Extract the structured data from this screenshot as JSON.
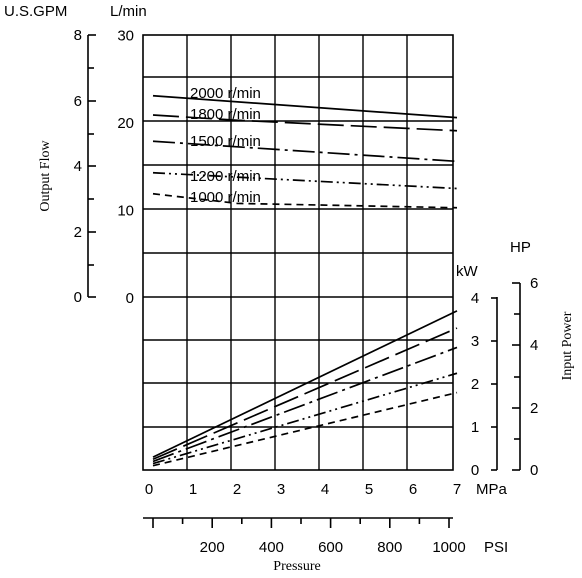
{
  "chart_data": {
    "type": "line",
    "xlabel": "Pressure",
    "x_axis_mpa": {
      "unit": "MPa",
      "ticks": [
        "0",
        "1",
        "2",
        "3",
        "4",
        "5",
        "6",
        "7"
      ],
      "range": [
        0,
        7
      ]
    },
    "x_axis_psi": {
      "unit": "PSI",
      "ticks": [
        "200",
        "400",
        "600",
        "800",
        "1000"
      ]
    },
    "flow_axis_l": {
      "unit": "L/min",
      "ticks": [
        "30",
        "20",
        "10",
        "0"
      ],
      "range": [
        0,
        30
      ]
    },
    "flow_axis_gpm": {
      "unit": "U.S.GPM",
      "ticks": [
        "8",
        "6",
        "4",
        "2",
        "0"
      ]
    },
    "flow_label": "Output Flow",
    "power_axis_kw": {
      "unit": "kW",
      "ticks": [
        "4",
        "3",
        "2",
        "1",
        "0"
      ],
      "range": [
        0,
        4
      ]
    },
    "power_axis_hp": {
      "unit": "HP",
      "ticks": [
        "6",
        "4",
        "2",
        "0"
      ]
    },
    "power_label": "Input Power",
    "flow_series": [
      {
        "name": "2000 r/min",
        "dash": "",
        "x": [
          0,
          7
        ],
        "y": [
          23.0,
          20.5
        ]
      },
      {
        "name": "1800 r/min",
        "dash": "26,7",
        "x": [
          0,
          2,
          7
        ],
        "y": [
          20.8,
          20.2,
          19.0
        ]
      },
      {
        "name": "1500 r/min",
        "dash": "22,5,3,5",
        "x": [
          0,
          7
        ],
        "y": [
          17.8,
          15.5
        ]
      },
      {
        "name": "1200 r/min",
        "dash": "12,4,2,4,2,4",
        "x": [
          0,
          7
        ],
        "y": [
          14.2,
          12.4
        ]
      },
      {
        "name": "1000 r/min",
        "dash": "7,5",
        "x": [
          0,
          2,
          7
        ],
        "y": [
          11.8,
          10.7,
          10.2
        ]
      }
    ],
    "power_series": [
      {
        "name": "2000 r/min",
        "dash": "",
        "x": [
          0,
          7
        ],
        "y": [
          0.3,
          3.7
        ]
      },
      {
        "name": "1800 r/min",
        "dash": "26,7",
        "x": [
          0,
          7
        ],
        "y": [
          0.25,
          3.3
        ]
      },
      {
        "name": "1500 r/min",
        "dash": "22,5,3,5",
        "x": [
          0,
          7
        ],
        "y": [
          0.2,
          2.85
        ]
      },
      {
        "name": "1200 r/min",
        "dash": "12,4,2,4,2,4",
        "x": [
          0,
          7
        ],
        "y": [
          0.15,
          2.25
        ]
      },
      {
        "name": "1000 r/min",
        "dash": "7,5",
        "x": [
          0,
          7
        ],
        "y": [
          0.1,
          1.8
        ]
      }
    ]
  }
}
